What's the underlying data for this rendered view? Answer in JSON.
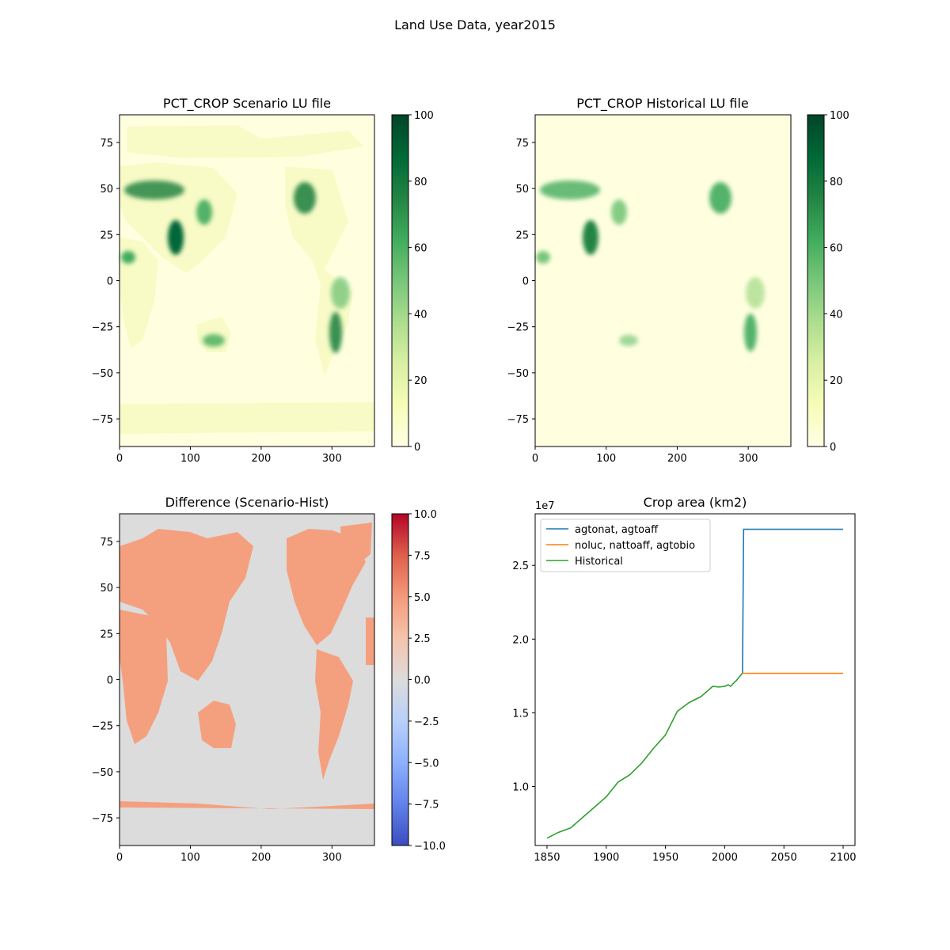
{
  "figure": {
    "suptitle": "Land Use Data, year2015"
  },
  "chart_data": [
    {
      "type": "heatmap",
      "title": "PCT_CROP Scenario LU file",
      "xlabel": "",
      "ylabel": "",
      "xlim": [
        0,
        360
      ],
      "ylim": [
        -90,
        90
      ],
      "xticks": [
        0,
        100,
        200,
        300
      ],
      "yticks": [
        -75,
        -50,
        -25,
        0,
        25,
        50,
        75
      ],
      "colormap": "YlGn",
      "colorbar": {
        "vmin": 0,
        "vmax": 100,
        "ticks": [
          0,
          20,
          40,
          60,
          80,
          100
        ]
      },
      "hotspots": [
        {
          "lon": 30,
          "lat": 50,
          "value": 75
        },
        {
          "lon": 75,
          "lat": 22,
          "value": 90
        },
        {
          "lon": 115,
          "lat": 35,
          "value": 70
        },
        {
          "lon": 265,
          "lat": 42,
          "value": 85
        },
        {
          "lon": 300,
          "lat": -30,
          "value": 80
        },
        {
          "lon": 118,
          "lat": -32,
          "value": 75
        }
      ]
    },
    {
      "type": "heatmap",
      "title": "PCT_CROP Historical LU file",
      "xlabel": "",
      "ylabel": "",
      "xlim": [
        0,
        360
      ],
      "ylim": [
        -90,
        90
      ],
      "xticks": [
        0,
        100,
        200,
        300
      ],
      "yticks": [
        -75,
        -50,
        -25,
        0,
        25,
        50,
        75
      ],
      "colormap": "YlGn",
      "colorbar": {
        "vmin": 0,
        "vmax": 100,
        "ticks": [
          0,
          20,
          40,
          60,
          80,
          100
        ]
      },
      "hotspots": [
        {
          "lon": 30,
          "lat": 50,
          "value": 60
        },
        {
          "lon": 75,
          "lat": 22,
          "value": 80
        },
        {
          "lon": 115,
          "lat": 35,
          "value": 60
        },
        {
          "lon": 265,
          "lat": 42,
          "value": 70
        },
        {
          "lon": 300,
          "lat": -30,
          "value": 70
        },
        {
          "lon": 118,
          "lat": -32,
          "value": 60
        }
      ]
    },
    {
      "type": "heatmap",
      "title": "Difference (Scenario-Hist)",
      "xlabel": "",
      "ylabel": "",
      "xlim": [
        0,
        360
      ],
      "ylim": [
        -90,
        90
      ],
      "xticks": [
        0,
        100,
        200,
        300
      ],
      "yticks": [
        -75,
        -50,
        -25,
        0,
        25,
        50,
        75
      ],
      "colormap": "coolwarm",
      "colorbar": {
        "vmin": -10,
        "vmax": 10,
        "ticks": [
          -10.0,
          -7.5,
          -5.0,
          -2.5,
          0.0,
          2.5,
          5.0,
          7.5,
          10.0
        ]
      },
      "land_value": 5.0,
      "ocean_value": 0.0
    },
    {
      "type": "line",
      "title": "Crop area (km2)",
      "xlabel": "",
      "ylabel": "",
      "offset_text": "1e7",
      "xlim": [
        1840,
        2110
      ],
      "ylim": [
        0.6,
        2.85
      ],
      "xticks": [
        1850,
        1900,
        1950,
        2000,
        2050,
        2100
      ],
      "yticks": [
        1.0,
        1.5,
        2.0,
        2.5
      ],
      "legend_position": "upper-left",
      "series": [
        {
          "name": "agtonat, agtoaff",
          "color": "#1f77b4",
          "x": [
            2015,
            2016,
            2100
          ],
          "y": [
            1.77,
            2.745,
            2.745
          ]
        },
        {
          "name": "noluc, nattoaff, agtobio",
          "color": "#ff7f0e",
          "x": [
            2015,
            2016,
            2100
          ],
          "y": [
            1.77,
            1.768,
            1.768
          ]
        },
        {
          "name": "Historical",
          "color": "#2ca02c",
          "x": [
            1850,
            1860,
            1870,
            1880,
            1890,
            1900,
            1910,
            1920,
            1930,
            1940,
            1950,
            1960,
            1970,
            1980,
            1990,
            1995,
            2000,
            2003,
            2005,
            2008,
            2010,
            2015
          ],
          "y": [
            0.65,
            0.69,
            0.72,
            0.79,
            0.86,
            0.93,
            1.03,
            1.08,
            1.16,
            1.26,
            1.35,
            1.51,
            1.57,
            1.61,
            1.68,
            1.675,
            1.68,
            1.69,
            1.68,
            1.705,
            1.72,
            1.77
          ]
        }
      ]
    }
  ]
}
